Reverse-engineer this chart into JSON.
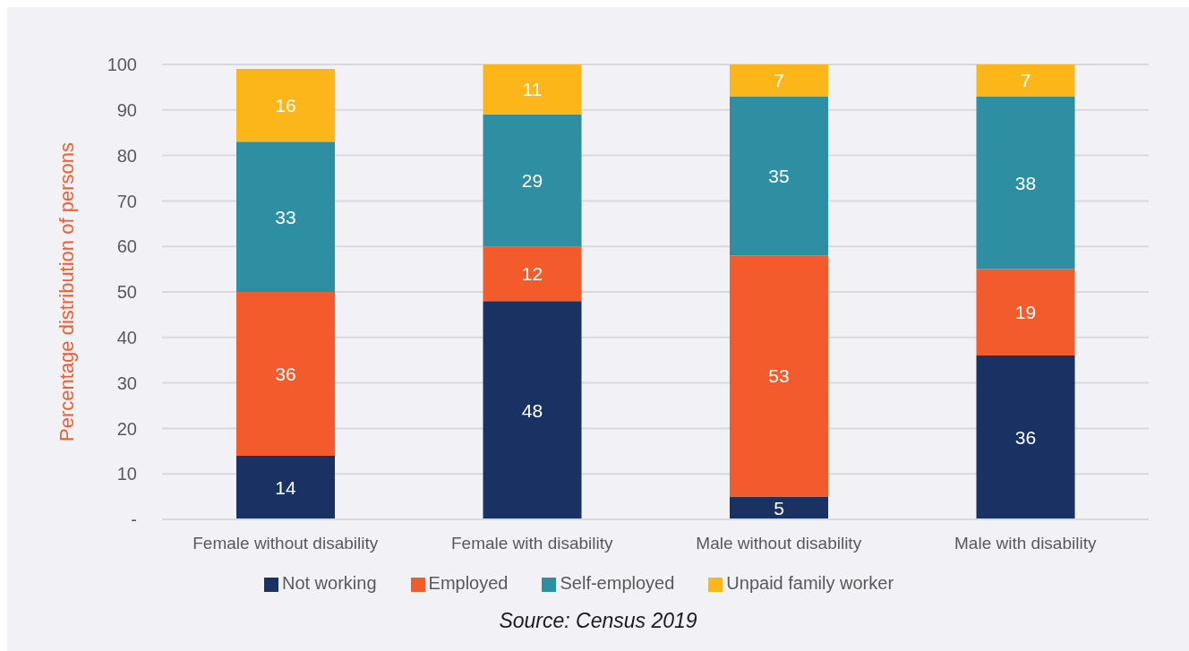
{
  "chart_data": {
    "type": "bar",
    "stacked": true,
    "categories": [
      "Female without disability",
      "Female with disability",
      "Male without disability",
      "Male with disability"
    ],
    "series": [
      {
        "name": "Not working",
        "color": "#1a3263",
        "values": [
          14,
          48,
          5,
          36
        ]
      },
      {
        "name": "Employed",
        "color": "#f45b2c",
        "values": [
          36,
          12,
          53,
          19
        ]
      },
      {
        "name": "Self-employed",
        "color": "#2e8fa2",
        "values": [
          33,
          29,
          35,
          38
        ]
      },
      {
        "name": "Unpaid family worker",
        "color": "#fdb61a",
        "values": [
          16,
          11,
          7,
          7
        ]
      }
    ],
    "ylabel": "Percentage distribution of persons",
    "ylim": [
      0,
      100
    ],
    "yticks": [
      {
        "value": 0,
        "label": "-"
      },
      10,
      20,
      30,
      40,
      50,
      60,
      70,
      80,
      90,
      100
    ],
    "grid": "y",
    "legend": "bottom",
    "data_labels": true,
    "annotations": [
      "Source: Census 2019"
    ]
  }
}
